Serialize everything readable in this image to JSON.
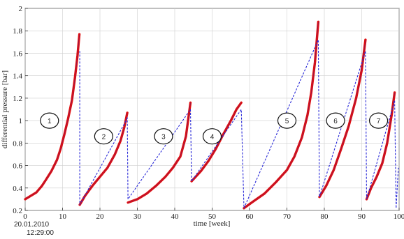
{
  "chart_data": {
    "type": "line",
    "title": "",
    "xlabel": "time [week]",
    "ylabel": "differential pressure [bar]",
    "xlim": [
      0,
      100
    ],
    "ylim": [
      0.2,
      2.0
    ],
    "x_ticks": [
      0,
      10,
      20,
      30,
      40,
      50,
      60,
      70,
      80,
      90,
      100
    ],
    "y_ticks": [
      0.2,
      0.4,
      0.6,
      0.8,
      1.0,
      1.2,
      1.4,
      1.6,
      1.8,
      2.0
    ],
    "y_tick_labels": [
      "0.2",
      "0.4",
      "0.6",
      "0.8",
      "1",
      "1.2",
      "1.4",
      "1.6",
      "1.8",
      "2"
    ],
    "grid": true,
    "start_stamp": [
      "20.01.2010",
      "12:29:00"
    ],
    "series": [
      {
        "color": "#e01010",
        "style": "solid",
        "segments": [
          [
            [
              0,
              0.3
            ],
            [
              1.5,
              0.33
            ],
            [
              3,
              0.36
            ],
            [
              4.5,
              0.42
            ],
            [
              5.5,
              0.47
            ],
            [
              7,
              0.55
            ],
            [
              8.5,
              0.65
            ],
            [
              9.5,
              0.75
            ],
            [
              10.5,
              0.88
            ],
            [
              11.5,
              1.02
            ],
            [
              12.5,
              1.18
            ],
            [
              13.3,
              1.38
            ],
            [
              14,
              1.58
            ],
            [
              14.5,
              1.77
            ]
          ],
          [
            [
              14.6,
              0.25
            ],
            [
              16,
              0.33
            ],
            [
              18,
              0.42
            ],
            [
              20,
              0.5
            ],
            [
              22,
              0.58
            ],
            [
              24,
              0.7
            ],
            [
              25.5,
              0.82
            ],
            [
              26.5,
              0.94
            ],
            [
              27.3,
              1.07
            ]
          ],
          [
            [
              27.5,
              0.27
            ],
            [
              30,
              0.3
            ],
            [
              32.5,
              0.35
            ],
            [
              35,
              0.42
            ],
            [
              37.5,
              0.5
            ],
            [
              39.5,
              0.58
            ],
            [
              41.5,
              0.68
            ],
            [
              43,
              0.86
            ],
            [
              44.2,
              1.16
            ]
          ],
          [
            [
              44.5,
              0.46
            ],
            [
              47,
              0.55
            ],
            [
              49,
              0.64
            ],
            [
              51,
              0.75
            ],
            [
              53,
              0.88
            ],
            [
              55,
              1.0
            ],
            [
              56.5,
              1.1
            ],
            [
              57.8,
              1.16
            ]
          ],
          [
            [
              58.5,
              0.22
            ],
            [
              61,
              0.28
            ],
            [
              64,
              0.35
            ],
            [
              67,
              0.45
            ],
            [
              70,
              0.56
            ],
            [
              72,
              0.68
            ],
            [
              74,
              0.85
            ],
            [
              75.5,
              1.05
            ],
            [
              76.5,
              1.25
            ],
            [
              77.5,
              1.52
            ],
            [
              78.4,
              1.88
            ]
          ],
          [
            [
              78.7,
              0.32
            ],
            [
              80.5,
              0.42
            ],
            [
              82.5,
              0.56
            ],
            [
              84.5,
              0.75
            ],
            [
              86.5,
              0.95
            ],
            [
              88.5,
              1.2
            ],
            [
              90,
              1.45
            ],
            [
              91,
              1.72
            ]
          ],
          [
            [
              91.3,
              0.3
            ],
            [
              92.5,
              0.4
            ],
            [
              94,
              0.5
            ],
            [
              95.5,
              0.62
            ],
            [
              96.8,
              0.8
            ],
            [
              98,
              1.05
            ],
            [
              98.8,
              1.25
            ]
          ]
        ]
      },
      {
        "color": "#2a2ad8",
        "style": "dashed",
        "points": [
          [
            14.6,
            1.62
          ],
          [
            14.6,
            0.25
          ],
          [
            27.3,
            1.02
          ],
          [
            27.5,
            0.3
          ],
          [
            44.2,
            1.1
          ],
          [
            44.5,
            0.46
          ],
          [
            57.8,
            1.1
          ],
          [
            58.5,
            0.22
          ],
          [
            78.4,
            1.72
          ],
          [
            78.7,
            0.32
          ],
          [
            91,
            1.62
          ],
          [
            91.3,
            0.3
          ],
          [
            98.8,
            1.18
          ],
          [
            99.2,
            0.22
          ],
          [
            99.8,
            0.58
          ]
        ]
      }
    ],
    "annotations": [
      {
        "label": "1",
        "x": 6.5,
        "y": 1.0
      },
      {
        "label": "2",
        "x": 21,
        "y": 0.86
      },
      {
        "label": "3",
        "x": 37,
        "y": 0.86
      },
      {
        "label": "4",
        "x": 50,
        "y": 0.86
      },
      {
        "label": "5",
        "x": 70,
        "y": 1.0
      },
      {
        "label": "6",
        "x": 83,
        "y": 1.0
      },
      {
        "label": "7",
        "x": 94.5,
        "y": 1.0
      }
    ]
  }
}
